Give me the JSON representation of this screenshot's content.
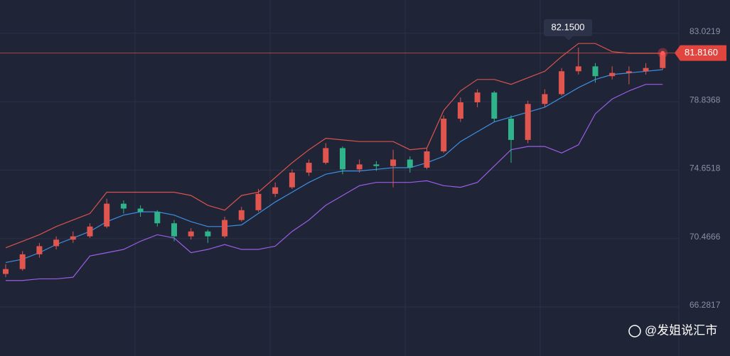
{
  "chart_data": {
    "type": "candlestick",
    "open": [
      68.3,
      68.6,
      69.5,
      70.0,
      70.4,
      70.6,
      71.2,
      72.6,
      72.3,
      72.1,
      71.4,
      70.6,
      70.9,
      70.6,
      71.6,
      72.2,
      73.2,
      73.6,
      74.5,
      75.1,
      76.0,
      74.7,
      75.0,
      74.9,
      75.3,
      74.8,
      75.8,
      77.8,
      78.8,
      79.4,
      77.8,
      76.5,
      78.7,
      79.3,
      80.7,
      81.0,
      80.4,
      80.6,
      80.7,
      80.9
    ],
    "high": [
      68.9,
      69.7,
      70.2,
      70.6,
      70.9,
      71.4,
      72.9,
      72.8,
      72.5,
      72.2,
      71.6,
      71.1,
      71.0,
      71.8,
      72.4,
      73.5,
      73.9,
      74.7,
      75.3,
      76.3,
      76.1,
      75.3,
      75.2,
      75.9,
      75.5,
      76.0,
      78.0,
      79.1,
      79.6,
      79.5,
      78.0,
      78.9,
      79.6,
      80.9,
      82.15,
      81.2,
      81.0,
      81.0,
      81.2,
      81.9
    ],
    "low": [
      68.1,
      68.5,
      69.3,
      69.8,
      70.2,
      70.5,
      71.1,
      72.0,
      71.8,
      71.2,
      70.3,
      70.4,
      70.2,
      70.5,
      71.5,
      72.1,
      73.0,
      73.5,
      74.3,
      75.0,
      74.4,
      74.5,
      74.6,
      73.6,
      74.5,
      74.7,
      75.7,
      77.6,
      78.5,
      77.6,
      75.1,
      76.3,
      78.5,
      79.2,
      80.5,
      80.0,
      80.2,
      79.9,
      80.5,
      80.8
    ],
    "close": [
      68.6,
      69.5,
      70.0,
      70.4,
      70.6,
      71.2,
      72.6,
      72.3,
      72.1,
      71.4,
      70.6,
      70.9,
      70.6,
      71.6,
      72.2,
      73.2,
      73.6,
      74.5,
      75.1,
      76.0,
      74.7,
      75.0,
      74.9,
      75.3,
      74.8,
      75.8,
      77.8,
      78.8,
      79.4,
      77.8,
      76.5,
      78.7,
      79.3,
      80.7,
      81.0,
      80.4,
      80.6,
      80.7,
      80.9,
      81.816
    ],
    "up_color": "#e0564f",
    "down_color": "#2fb38a",
    "bands": [
      {
        "color": "#d9534c",
        "values": [
          69.9,
          70.3,
          70.7,
          71.2,
          71.6,
          72.0,
          73.3,
          73.3,
          73.3,
          73.3,
          73.3,
          73.1,
          72.5,
          72.2,
          73.1,
          73.3,
          74.2,
          75.1,
          75.9,
          76.6,
          76.5,
          76.4,
          76.4,
          76.4,
          75.9,
          76.0,
          78.3,
          79.5,
          80.2,
          80.2,
          79.9,
          80.3,
          80.7,
          81.6,
          82.4,
          82.4,
          81.9,
          81.8,
          81.8,
          81.8
        ]
      },
      {
        "color": "#3f8fe0",
        "values": [
          69.0,
          69.2,
          69.6,
          70.1,
          70.5,
          70.9,
          71.5,
          71.9,
          72.1,
          72.1,
          71.9,
          71.5,
          71.2,
          71.2,
          71.3,
          72.0,
          72.7,
          73.3,
          73.9,
          74.4,
          74.6,
          74.6,
          74.7,
          74.8,
          74.8,
          75.1,
          75.5,
          76.4,
          77.0,
          77.6,
          77.9,
          78.2,
          78.5,
          79.1,
          79.7,
          80.2,
          80.5,
          80.6,
          80.7,
          80.8
        ]
      },
      {
        "color": "#9b5de5",
        "values": [
          67.9,
          67.9,
          68.0,
          68.0,
          68.1,
          69.4,
          69.6,
          69.8,
          70.3,
          70.7,
          70.5,
          69.6,
          69.8,
          70.1,
          69.8,
          69.8,
          70.0,
          70.9,
          71.6,
          72.5,
          73.1,
          73.7,
          73.9,
          73.9,
          73.9,
          74.0,
          73.7,
          73.6,
          73.9,
          74.9,
          75.9,
          76.1,
          76.1,
          75.7,
          76.2,
          78.1,
          79.0,
          79.5,
          79.9,
          79.9
        ]
      }
    ],
    "ylim": [
      63.28,
      85.06
    ],
    "yticks": [
      83.0219,
      78.8368,
      74.6518,
      70.4666,
      66.2817
    ],
    "grid": true,
    "last_price": {
      "value": 81.816,
      "label": "81.8160"
    },
    "high_label": {
      "value": 82.15,
      "label": "82.1500"
    },
    "watermark": "@发姐说汇市"
  }
}
